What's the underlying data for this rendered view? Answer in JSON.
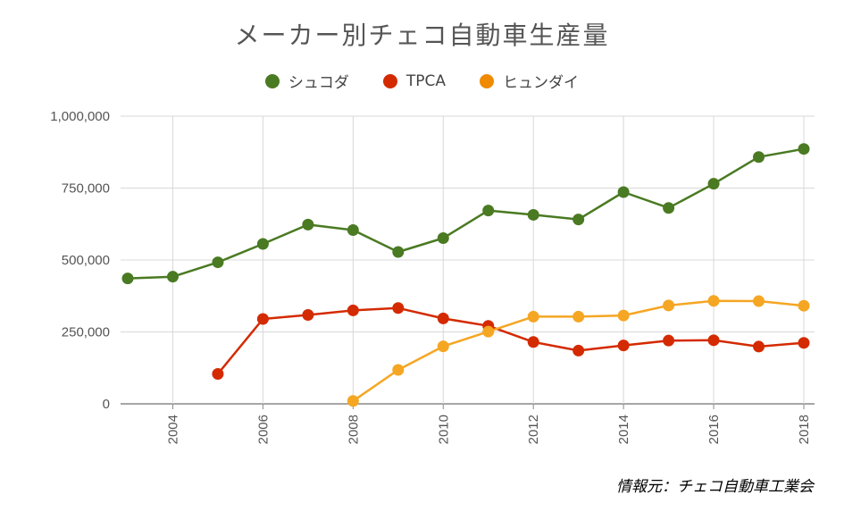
{
  "chart_data": {
    "type": "line",
    "title": "メーカー別チェコ自動車生産量",
    "xlim": [
      2003,
      2018
    ],
    "ylim": [
      0,
      1000000
    ],
    "x_ticks": [
      2004,
      2006,
      2008,
      2010,
      2012,
      2014,
      2016,
      2018
    ],
    "y_ticks": [
      {
        "value": 0,
        "label": "0"
      },
      {
        "value": 250000,
        "label": "250,000"
      },
      {
        "value": 500000,
        "label": "500,000"
      },
      {
        "value": 750000,
        "label": "750,000"
      },
      {
        "value": 1000000,
        "label": "1,000,000"
      }
    ],
    "grid": true,
    "legend_position": "top",
    "series": [
      {
        "name": "シュコダ",
        "color": "#4a7a22",
        "points": [
          [
            2003,
            436000
          ],
          [
            2004,
            442000
          ],
          [
            2005,
            492000
          ],
          [
            2006,
            556000
          ],
          [
            2007,
            623000
          ],
          [
            2008,
            604000
          ],
          [
            2009,
            528000
          ],
          [
            2010,
            576000
          ],
          [
            2011,
            672000
          ],
          [
            2012,
            657000
          ],
          [
            2013,
            641000
          ],
          [
            2014,
            736000
          ],
          [
            2015,
            681000
          ],
          [
            2016,
            765000
          ],
          [
            2017,
            858000
          ],
          [
            2018,
            886000
          ]
        ]
      },
      {
        "name": "TPCA",
        "color": "#d42a00",
        "points": [
          [
            2005,
            104000
          ],
          [
            2006,
            295000
          ],
          [
            2007,
            309000
          ],
          [
            2008,
            325000
          ],
          [
            2009,
            333000
          ],
          [
            2010,
            297000
          ],
          [
            2011,
            271000
          ],
          [
            2012,
            215000
          ],
          [
            2013,
            185000
          ],
          [
            2014,
            203000
          ],
          [
            2015,
            220000
          ],
          [
            2016,
            221000
          ],
          [
            2017,
            199000
          ],
          [
            2018,
            212000
          ]
        ]
      },
      {
        "name": "ヒュンダイ",
        "color": "#f5a623",
        "legend_color": "#f08a00",
        "points": [
          [
            2008,
            10000
          ],
          [
            2009,
            118000
          ],
          [
            2010,
            200000
          ],
          [
            2011,
            251000
          ],
          [
            2012,
            303000
          ],
          [
            2013,
            303000
          ],
          [
            2014,
            307000
          ],
          [
            2015,
            342000
          ],
          [
            2016,
            358000
          ],
          [
            2017,
            357000
          ],
          [
            2018,
            341000
          ]
        ]
      }
    ]
  },
  "source": "情報元：チェコ自動車工業会"
}
